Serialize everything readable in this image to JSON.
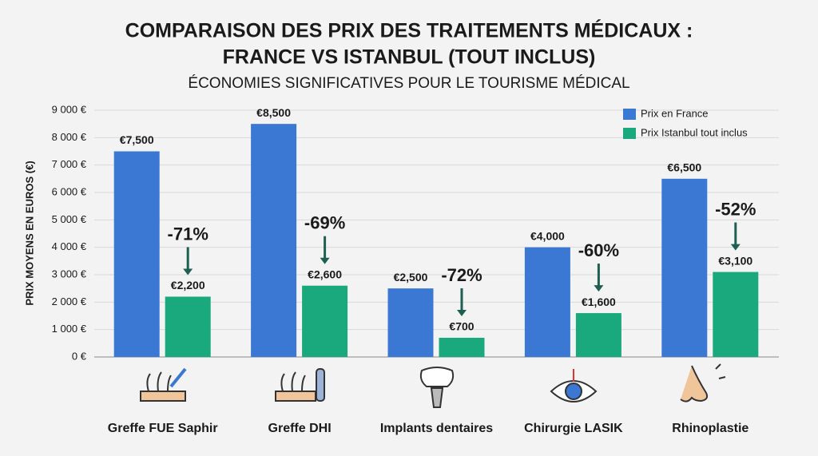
{
  "chart_data": {
    "type": "bar",
    "title": [
      "COMPARAISON DES PRIX DES TRAITEMENTS MÉDICAUX :",
      "FRANCE VS ISTANBUL (TOUT INCLUS)"
    ],
    "subtitle": "ÉCONOMIES SIGNIFICATIVES POUR LE TOURISME MÉDICAL",
    "y_label": "PRIX MOYENS EN EUROS (€)",
    "categories": [
      "Greffe FUE Saphir",
      "Greffe DHI",
      "Implants dentaires",
      "Chirurgie LASIK",
      "Rhinoplastie"
    ],
    "series": [
      {
        "name": "Prix en France",
        "color": "#3a78d3",
        "values": [
          7500,
          8500,
          2500,
          4000,
          6500
        ],
        "value_labels": [
          "€7,500",
          "€8,500",
          "€2,500",
          "€4,000",
          "€6,500"
        ]
      },
      {
        "name": "Prix Istanbul tout inclus",
        "color": "#1aa97c",
        "values": [
          2200,
          2600,
          700,
          1600,
          3100
        ],
        "value_labels": [
          "€2,200",
          "€2,600",
          "€700",
          "€1,600",
          "€3,100"
        ]
      }
    ],
    "annotations": [
      "-71%",
      "-69%",
      "-72%",
      "-60%",
      "-52%"
    ],
    "ylim": [
      0,
      9000
    ],
    "yticks": [
      {
        "value": 0,
        "label": "0 €"
      },
      {
        "value": 1000,
        "label": "1 000 €"
      },
      {
        "value": 2000,
        "label": "2 000 €"
      },
      {
        "value": 3000,
        "label": "3 000 €"
      },
      {
        "value": 4000,
        "label": "4 000 €"
      },
      {
        "value": 5000,
        "label": "5 000 €"
      },
      {
        "value": 6000,
        "label": "6 000 €"
      },
      {
        "value": 7000,
        "label": "7 000 €"
      },
      {
        "value": 8000,
        "label": "8 000 €"
      },
      {
        "value": 9000,
        "label": "9 000 €"
      }
    ],
    "grid": true,
    "legend": "top-right"
  }
}
